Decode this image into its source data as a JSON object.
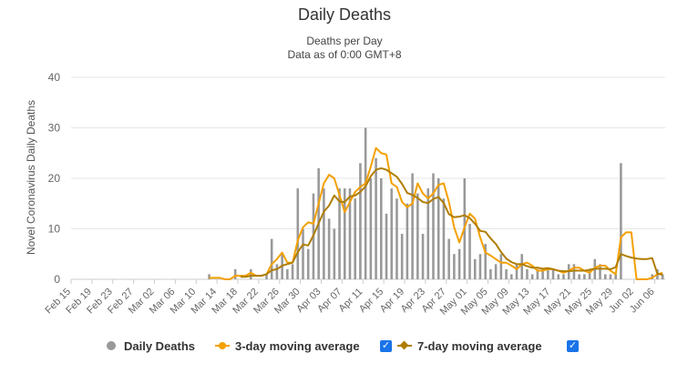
{
  "chart_data": {
    "type": "bar",
    "title": "Daily Deaths",
    "subtitle_line1": "Deaths per Day",
    "subtitle_line2": "Data as of 0:00 GMT+8",
    "ylabel": "Novel Coronavirus Daily Deaths",
    "ylim": [
      0,
      40
    ],
    "yticks": [
      0,
      10,
      20,
      30,
      40
    ],
    "start_date": "2020-02-15",
    "xticks": [
      "Feb 15",
      "Feb 19",
      "Feb 23",
      "Feb 27",
      "Mar 02",
      "Mar 06",
      "Mar 10",
      "Mar 14",
      "Mar 18",
      "Mar 22",
      "Mar 26",
      "Mar 30",
      "Apr 03",
      "Apr 07",
      "Apr 11",
      "Apr 15",
      "Apr 19",
      "Apr 23",
      "Apr 27",
      "May 01",
      "May 05",
      "May 09",
      "May 13",
      "May 17",
      "May 21",
      "May 25",
      "May 29",
      "Jun 02",
      "Jun 06"
    ],
    "grid": true,
    "legend_position": "bottom",
    "colors": {
      "bars": "#999999",
      "ma3": "#f4a000",
      "ma7": "#b07d00",
      "checkbox": "#1a73e8"
    },
    "series": [
      {
        "name": "Daily Deaths",
        "type": "bar",
        "values": [
          0,
          0,
          0,
          0,
          0,
          0,
          0,
          0,
          0,
          0,
          0,
          0,
          0,
          0,
          0,
          0,
          0,
          0,
          0,
          0,
          0,
          0,
          0,
          0,
          0,
          0,
          1,
          0,
          0,
          0,
          0,
          2,
          0,
          0,
          2,
          0,
          0,
          1,
          8,
          3,
          5,
          2,
          3,
          18,
          10,
          6,
          17,
          22,
          18,
          12,
          10,
          18,
          18,
          18,
          16,
          23,
          30,
          20,
          24,
          20,
          13,
          18,
          16,
          9,
          15,
          21,
          17,
          9,
          18,
          21,
          20,
          16,
          8,
          5,
          6,
          20,
          11,
          4,
          5,
          7,
          2,
          3,
          5,
          2,
          1,
          3,
          5,
          2,
          1,
          2,
          2,
          2,
          2,
          1,
          1,
          3,
          3,
          1,
          1,
          2,
          4,
          3,
          1,
          1,
          1,
          23,
          0,
          0,
          0,
          0,
          0,
          1,
          2,
          1
        ]
      },
      {
        "name": "3-day moving average",
        "type": "line",
        "values": [
          null,
          null,
          null,
          null,
          null,
          null,
          null,
          null,
          null,
          null,
          null,
          null,
          null,
          null,
          null,
          null,
          null,
          null,
          null,
          null,
          null,
          null,
          null,
          null,
          null,
          null,
          0.3,
          0.3,
          0.3,
          0,
          0,
          0.7,
          0.7,
          0.7,
          1.3,
          0.7,
          0.7,
          1,
          3,
          4,
          5.3,
          3.3,
          3.3,
          7.7,
          10.3,
          11.3,
          11,
          15,
          19,
          20.7,
          20,
          16.7,
          13.3,
          15.3,
          17.3,
          18.3,
          19,
          22.3,
          26,
          25,
          24.7,
          19,
          18.3,
          15.3,
          14.3,
          15,
          19,
          17,
          16,
          17,
          18.7,
          19,
          15.3,
          10.3,
          7.3,
          10.3,
          13,
          12,
          8.3,
          5.3,
          4.7,
          4,
          3.3,
          3.3,
          2.7,
          2,
          3,
          3.3,
          2.7,
          1.7,
          1.7,
          2,
          2,
          1.7,
          1.3,
          1.7,
          2.3,
          2.3,
          1.7,
          1.3,
          2.3,
          2.7,
          2.7,
          1.7,
          1,
          8.3,
          9.3,
          9.3,
          0,
          0,
          0,
          0.3,
          1,
          1.3
        ]
      },
      {
        "name": "7-day moving average",
        "type": "line",
        "values": [
          null,
          null,
          null,
          null,
          null,
          null,
          null,
          null,
          null,
          null,
          null,
          null,
          null,
          null,
          null,
          null,
          null,
          null,
          null,
          null,
          null,
          null,
          null,
          null,
          null,
          null,
          null,
          null,
          null,
          null,
          null,
          null,
          0.5,
          0.5,
          0.7,
          0.7,
          0.7,
          1,
          1.8,
          2,
          2.7,
          3,
          3.3,
          5.4,
          6.9,
          6.7,
          8.7,
          11.1,
          13.4,
          14.6,
          16.6,
          15.4,
          15.3,
          16.4,
          16.6,
          17.3,
          18.4,
          20.4,
          21.7,
          22,
          21.7,
          21,
          20.3,
          18.9,
          17.1,
          16.7,
          16.1,
          15.3,
          15.1,
          15.9,
          16.3,
          15.1,
          12.9,
          12.3,
          12.4,
          12.7,
          12.1,
          11,
          9.6,
          9.4,
          8.1,
          7,
          5.4,
          4.1,
          3.4,
          3,
          3,
          2.6,
          2.3,
          2.3,
          2.1,
          2.2,
          2,
          1.7,
          1.6,
          1.6,
          1.7,
          1.7,
          1.7,
          1.9,
          2.1,
          2.1,
          2.1,
          2,
          2.4,
          5,
          4.6,
          4.3,
          4.1,
          4,
          4,
          4.2,
          1.1,
          0.9
        ]
      }
    ]
  }
}
